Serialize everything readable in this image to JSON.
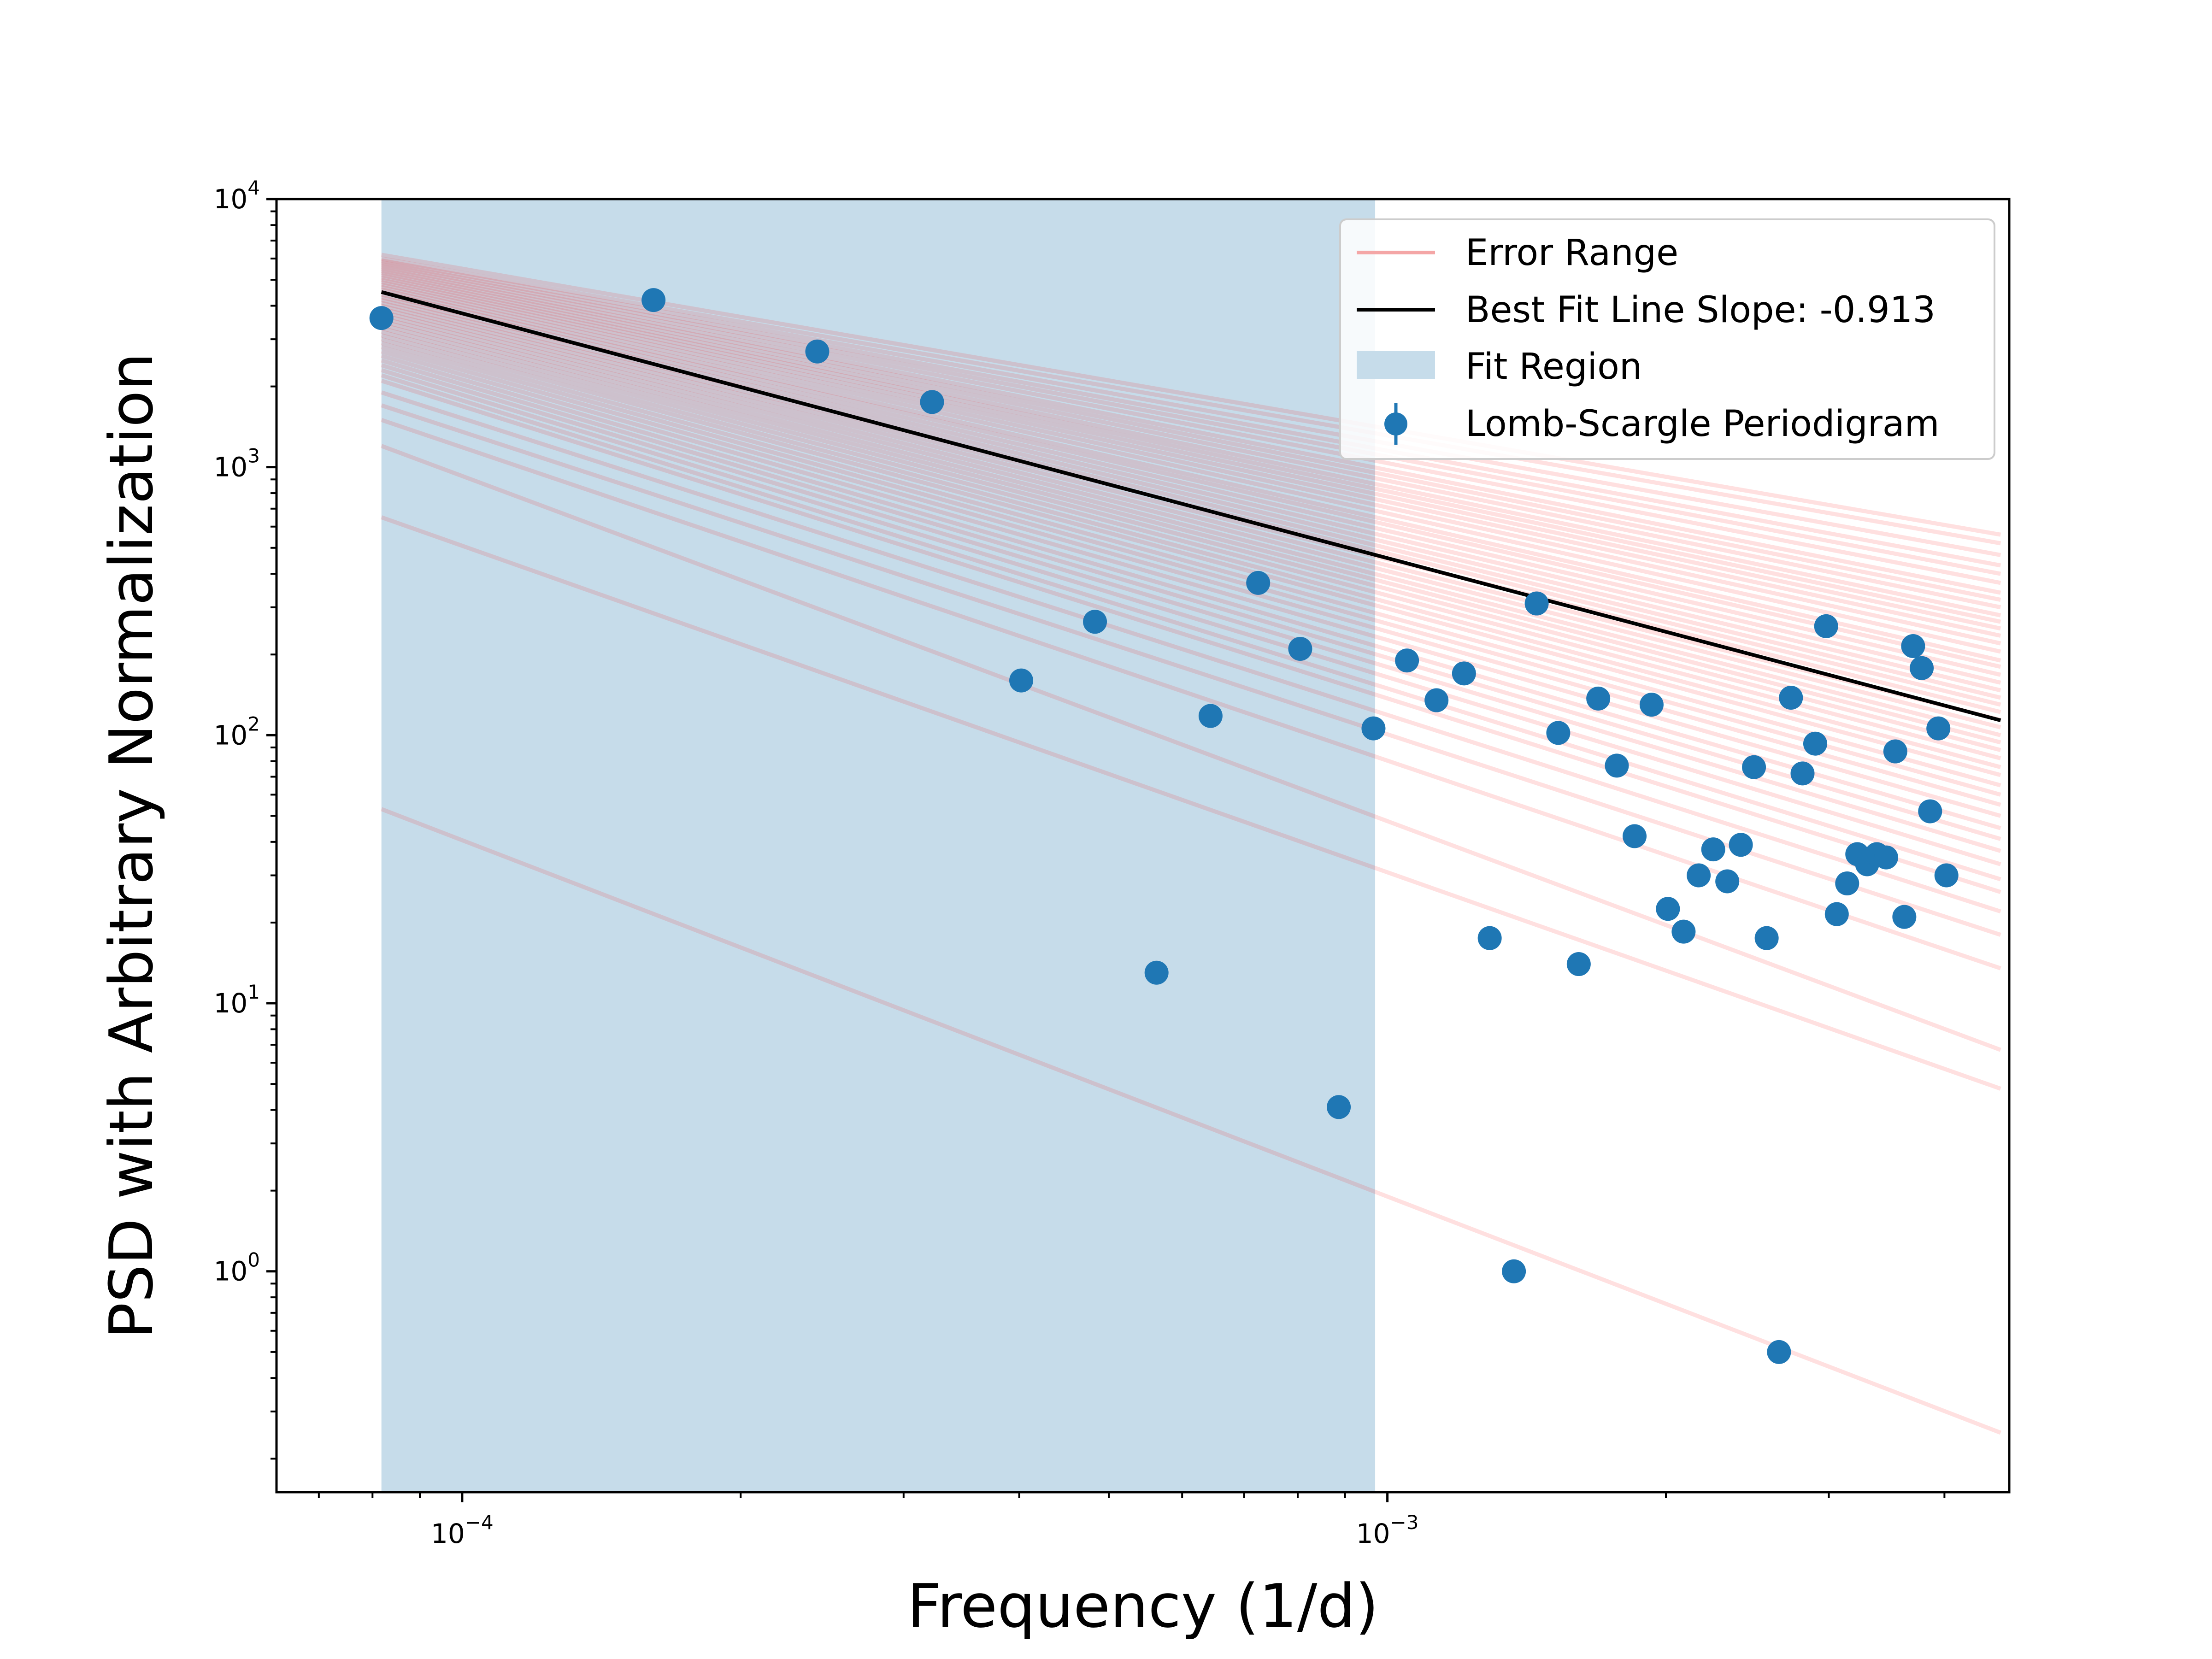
{
  "chart_data": {
    "type": "scatter",
    "title": "",
    "xlabel": "Frequency (1/d)",
    "ylabel": "PSD with Arbitrary Normalization",
    "xscale": "log",
    "yscale": "log",
    "xlim": [
      6.3e-05,
      0.0047
    ],
    "ylim": [
      0.15,
      10000
    ],
    "x_ticks": [
      {
        "value": 0.0001,
        "base": "10",
        "exp": "−4"
      },
      {
        "value": 0.001,
        "base": "10",
        "exp": "−3"
      }
    ],
    "y_ticks": [
      {
        "value": 1,
        "base": "10",
        "exp": "0"
      },
      {
        "value": 10,
        "base": "10",
        "exp": "1"
      },
      {
        "value": 100,
        "base": "10",
        "exp": "2"
      },
      {
        "value": 1000,
        "base": "10",
        "exp": "3"
      },
      {
        "value": 10000,
        "base": "10",
        "exp": "4"
      }
    ],
    "fit_region": {
      "label": "Fit Region",
      "x_start": 8.18e-05,
      "x_end": 0.00097,
      "color": "#c6dcea"
    },
    "best_fit": {
      "label": "Best Fit Line Slope: -0.913",
      "slope": -0.913,
      "x_start": 8.18e-05,
      "x_end": 0.0046,
      "y_at_start": 4500,
      "color": "#000000"
    },
    "error_range": {
      "label": "Error Range",
      "color": "#ff0000",
      "x_start": 8.18e-05,
      "x_end": 0.0046,
      "lines": [
        [
          6200,
          560
        ],
        [
          6000,
          520
        ],
        [
          5900,
          470
        ],
        [
          5800,
          430
        ],
        [
          5700,
          400
        ],
        [
          5600,
          370
        ],
        [
          5500,
          340
        ],
        [
          5400,
          320
        ],
        [
          5300,
          300
        ],
        [
          5200,
          280
        ],
        [
          5100,
          265
        ],
        [
          5000,
          250
        ],
        [
          4900,
          235
        ],
        [
          4800,
          220
        ],
        [
          4700,
          205
        ],
        [
          4600,
          190
        ],
        [
          4500,
          180
        ],
        [
          4400,
          168
        ],
        [
          4300,
          157
        ],
        [
          4200,
          147
        ],
        [
          4100,
          138
        ],
        [
          4000,
          130
        ],
        [
          3900,
          122
        ],
        [
          3800,
          114
        ],
        [
          3700,
          107
        ],
        [
          3600,
          100
        ],
        [
          3500,
          94
        ],
        [
          3400,
          88
        ],
        [
          3300,
          82
        ],
        [
          3200,
          76
        ],
        [
          3100,
          71
        ],
        [
          3000,
          65
        ],
        [
          2900,
          60
        ],
        [
          2800,
          55
        ],
        [
          2700,
          50
        ],
        [
          2600,
          45
        ],
        [
          2500,
          41
        ],
        [
          2400,
          37
        ],
        [
          2300,
          33
        ],
        [
          2200,
          29
        ],
        [
          2100,
          26
        ],
        [
          1900,
          22
        ],
        [
          1700,
          18
        ],
        [
          1500,
          13.5
        ],
        [
          1200,
          6.7
        ],
        [
          650,
          4.8
        ],
        [
          53,
          0.25
        ]
      ]
    },
    "series": [
      {
        "name": "Lomb-Scargle Periodigram",
        "color": "#1f77b4",
        "points": [
          [
            8.18e-05,
            3600
          ],
          [
            0.000161,
            4200
          ],
          [
            0.000242,
            2700
          ],
          [
            0.000322,
            1750
          ],
          [
            0.000402,
            160
          ],
          [
            0.000483,
            265
          ],
          [
            0.000563,
            13
          ],
          [
            0.000644,
            118
          ],
          [
            0.000725,
            370
          ],
          [
            0.000805,
            210
          ],
          [
            0.000886,
            4.1
          ],
          [
            0.000966,
            106
          ],
          [
            0.00105,
            190
          ],
          [
            0.00113,
            135
          ],
          [
            0.00121,
            170
          ],
          [
            0.00129,
            17.5
          ],
          [
            0.00137,
            1.0
          ],
          [
            0.00145,
            310
          ],
          [
            0.00153,
            102
          ],
          [
            0.00161,
            14
          ],
          [
            0.00169,
            137
          ],
          [
            0.00177,
            77
          ],
          [
            0.00185,
            42
          ],
          [
            0.00193,
            130
          ],
          [
            0.00201,
            22.5
          ],
          [
            0.00209,
            18.5
          ],
          [
            0.00217,
            30
          ],
          [
            0.00225,
            37.5
          ],
          [
            0.00233,
            28.5
          ],
          [
            0.00241,
            39
          ],
          [
            0.00249,
            76
          ],
          [
            0.00257,
            17.5
          ],
          [
            0.00265,
            0.5
          ],
          [
            0.00273,
            138
          ],
          [
            0.00281,
            72
          ],
          [
            0.0029,
            93
          ],
          [
            0.00298,
            255
          ],
          [
            0.00306,
            21.5
          ],
          [
            0.00314,
            28
          ],
          [
            0.00322,
            36
          ],
          [
            0.0033,
            33
          ],
          [
            0.00338,
            36
          ],
          [
            0.00346,
            35
          ],
          [
            0.00354,
            87
          ],
          [
            0.00362,
            21
          ],
          [
            0.0037,
            215
          ],
          [
            0.00378,
            178
          ],
          [
            0.00386,
            52
          ],
          [
            0.00394,
            106
          ],
          [
            0.00402,
            30
          ]
        ]
      }
    ],
    "legend": {
      "position": "top-right",
      "entries": [
        {
          "label": "Error Range",
          "kind": "line",
          "color": "#f4a6a6"
        },
        {
          "label": "Best Fit Line Slope: -0.913",
          "kind": "line",
          "color": "#000000"
        },
        {
          "label": "Fit Region",
          "kind": "patch",
          "color": "#c6dcea"
        },
        {
          "label": "Lomb-Scargle Periodigram",
          "kind": "errorbar-marker",
          "color": "#1f77b4"
        }
      ]
    }
  }
}
